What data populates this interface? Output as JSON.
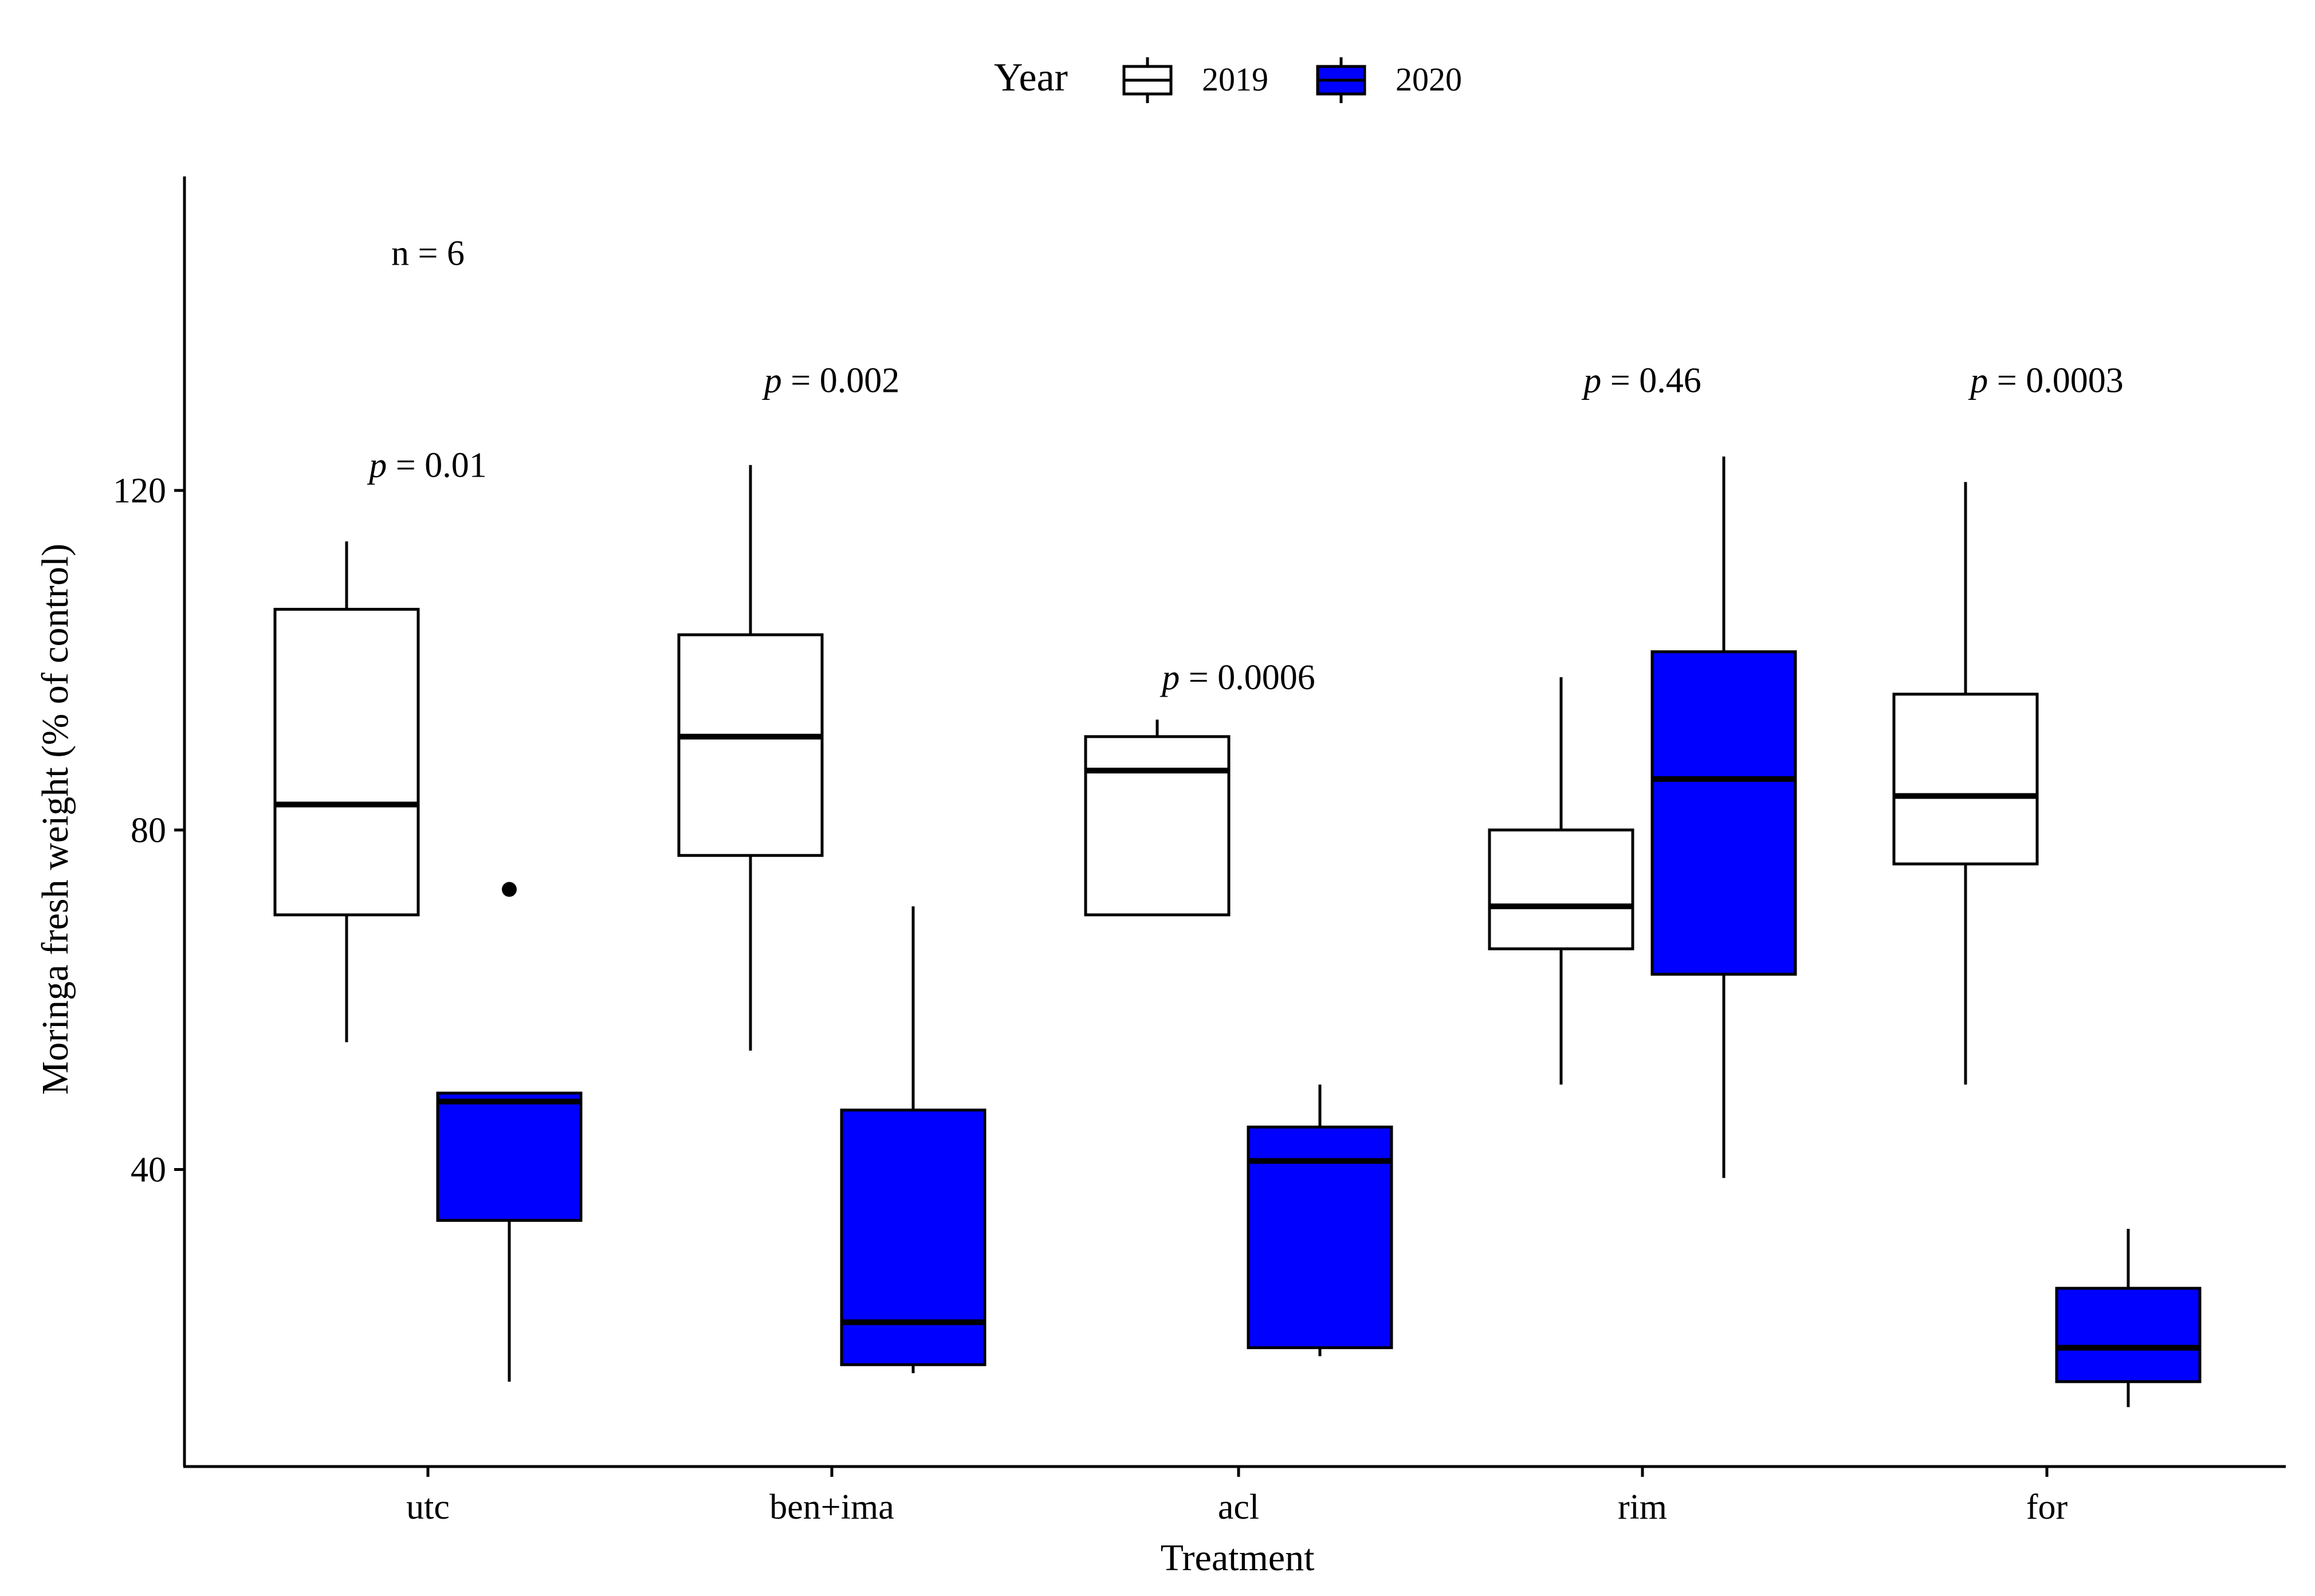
{
  "chart_data": {
    "type": "boxplot",
    "xlabel": "Treatment",
    "ylabel": "Moringa fresh weight (% of control)",
    "ylim": [
      5,
      157
    ],
    "yticks": [
      40,
      80,
      120
    ],
    "categories": [
      "utc",
      "ben+ima",
      "acl",
      "rim",
      "for"
    ],
    "legend": {
      "title": "Year",
      "position": "top",
      "entries": [
        {
          "label": "2019",
          "fill": "#ffffff"
        },
        {
          "label": "2020",
          "fill": "#0000ff"
        }
      ]
    },
    "series": [
      {
        "name": "2019",
        "fill": "#ffffff",
        "boxes": [
          {
            "category": "utc",
            "whisker_low": 55,
            "q1": 70,
            "median": 83,
            "q3": 106,
            "whisker_high": 114,
            "outliers": []
          },
          {
            "category": "ben+ima",
            "whisker_low": 54,
            "q1": 77,
            "median": 91,
            "q3": 103,
            "whisker_high": 123,
            "outliers": []
          },
          {
            "category": "acl",
            "whisker_low": 70,
            "q1": 70,
            "median": 87,
            "q3": 91,
            "whisker_high": 93,
            "outliers": []
          },
          {
            "category": "rim",
            "whisker_low": 50,
            "q1": 66,
            "median": 71,
            "q3": 80,
            "whisker_high": 98,
            "outliers": []
          },
          {
            "category": "for",
            "whisker_low": 50,
            "q1": 76,
            "median": 84,
            "q3": 96,
            "whisker_high": 121,
            "outliers": []
          }
        ]
      },
      {
        "name": "2020",
        "fill": "#0000ff",
        "boxes": [
          {
            "category": "utc",
            "whisker_low": 15,
            "q1": 34,
            "median": 48,
            "q3": 49,
            "whisker_high": 49,
            "outliers": [
              73
            ]
          },
          {
            "category": "ben+ima",
            "whisker_low": 16,
            "q1": 17,
            "median": 22,
            "q3": 47,
            "whisker_high": 71,
            "outliers": []
          },
          {
            "category": "acl",
            "whisker_low": 18,
            "q1": 19,
            "median": 41,
            "q3": 45,
            "whisker_high": 50,
            "outliers": []
          },
          {
            "category": "rim",
            "whisker_low": 39,
            "q1": 63,
            "median": 86,
            "q3": 101,
            "whisker_high": 124,
            "outliers": []
          },
          {
            "category": "for",
            "whisker_low": 12,
            "q1": 15,
            "median": 19,
            "q3": 26,
            "whisker_high": 33,
            "outliers": []
          }
        ]
      }
    ],
    "annotations": [
      {
        "category": "utc",
        "italic": "",
        "text": "n = 6",
        "y": 148
      },
      {
        "category": "utc",
        "italic": "p",
        "text": " = 0.01",
        "y": 123
      },
      {
        "category": "ben+ima",
        "italic": "p",
        "text": " = 0.002",
        "y": 133
      },
      {
        "category": "acl",
        "italic": "p",
        "text": " = 0.0006",
        "y": 98
      },
      {
        "category": "rim",
        "italic": "p",
        "text": " = 0.46",
        "y": 133
      },
      {
        "category": "for",
        "italic": "p",
        "text": " = 0.0003",
        "y": 133
      }
    ]
  }
}
